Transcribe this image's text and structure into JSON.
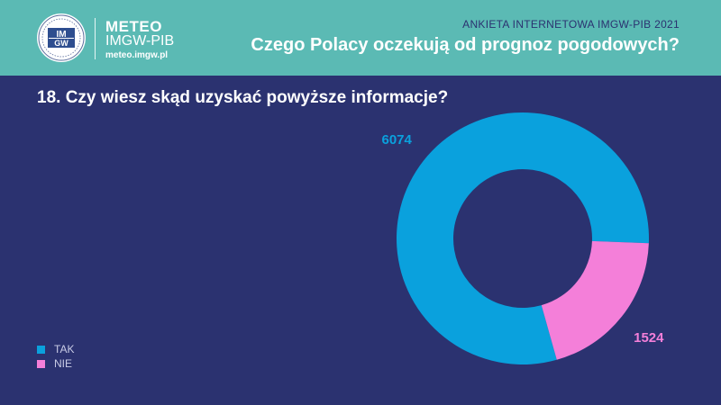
{
  "header": {
    "brand_name": "METEO",
    "brand_sub": "IMGW-PIB",
    "brand_url": "meteo.imgw.pl",
    "logo_text_top": "IM",
    "logo_text_bottom": "GW",
    "survey_name": "ANKIETA INTERNETOWA IMGW-PIB 2021",
    "survey_title": "Czego Polacy oczekują od prognoz pogodowych?"
  },
  "question": "18. Czy wiesz skąd uzyskać powyższe informacje?",
  "colors": {
    "background": "#2b3270",
    "header": "#5bbab4",
    "tak": "#0aa1dd",
    "nie": "#f47fd9"
  },
  "chart_data": {
    "type": "pie",
    "style": "donut",
    "categories": [
      "TAK",
      "NIE"
    ],
    "values": [
      6074,
      1524
    ],
    "data_labels": [
      "6074",
      "1524"
    ],
    "legend_position": "bottom-left"
  },
  "legend": {
    "items": [
      {
        "label": "TAK"
      },
      {
        "label": "NIE"
      }
    ]
  }
}
